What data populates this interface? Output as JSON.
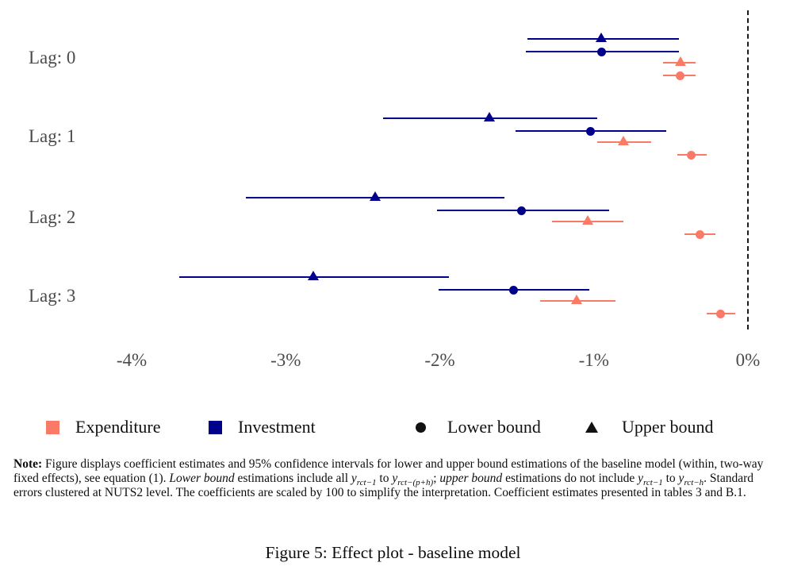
{
  "figure": {
    "caption": "Figure 5: Effect plot - baseline model"
  },
  "legend": {
    "expenditure_label": "Expenditure",
    "investment_label": "Investment",
    "lower_bound_label": "Lower bound",
    "upper_bound_label": "Upper bound"
  },
  "note": {
    "segments": [
      {
        "t": "Note:",
        "b": true
      },
      {
        "t": " Figure displays coefficient estimates and 95% confidence intervals for lower and upper bound estimations of the baseline model (within, two-way fixed effects), see equation (1). "
      },
      {
        "t": "Lower bound",
        "i": true
      },
      {
        "t": " estimations include all "
      },
      {
        "t": "y",
        "i": true
      },
      {
        "t": "rct−1",
        "i": true,
        "sub": true
      },
      {
        "t": " to "
      },
      {
        "t": "y",
        "i": true
      },
      {
        "t": "rct−(p+h)",
        "i": true,
        "sub": true
      },
      {
        "t": "; "
      },
      {
        "t": "upper bound",
        "i": true
      },
      {
        "t": " estimations do not include "
      },
      {
        "t": "y",
        "i": true
      },
      {
        "t": "rct−1",
        "i": true,
        "sub": true
      },
      {
        "t": " to "
      },
      {
        "t": "y",
        "i": true
      },
      {
        "t": "rct−h",
        "i": true,
        "sub": true
      },
      {
        "t": ". Standard errors clustered at NUTS2 level. The coefficients are scaled by 100 to simplify the interpretation. Coefficient estimates presented in tables 3 and B.1."
      }
    ]
  },
  "chart_data": {
    "type": "scatter",
    "subtype": "coefficient-interval-plot",
    "title": "Effect plot - baseline model",
    "xlabel": "",
    "ylabel": "",
    "x_unit": "%",
    "xlim": [
      -4.3,
      0.25
    ],
    "grid": false,
    "zero_line": {
      "value": 0,
      "style": "dashed",
      "color": "#1a1a1a"
    },
    "x_ticks": [
      {
        "label": "-4%",
        "value": -4
      },
      {
        "label": "-3%",
        "value": -3
      },
      {
        "label": "-2%",
        "value": -2
      },
      {
        "label": "-1%",
        "value": -1
      },
      {
        "label": "0%",
        "value": 0
      }
    ],
    "y_categories": [
      "Lag: 0",
      "Lag: 1",
      "Lag: 2",
      "Lag: 3"
    ],
    "colors": {
      "Expenditure": "#fa7a68",
      "Investment": "#00008b",
      "legend_marker": "#111111"
    },
    "marker_legend": {
      "circle": "Lower bound",
      "triangle": "Upper bound"
    },
    "series": [
      {
        "lag": 0,
        "group": "Investment",
        "bound": "upper",
        "marker": "triangle",
        "estimate": -0.95,
        "ci_low": -1.43,
        "ci_high": -0.45
      },
      {
        "lag": 0,
        "group": "Investment",
        "bound": "lower",
        "marker": "circle",
        "estimate": -0.95,
        "ci_low": -1.44,
        "ci_high": -0.45
      },
      {
        "lag": 0,
        "group": "Expenditure",
        "bound": "upper",
        "marker": "triangle",
        "estimate": -0.44,
        "ci_low": -0.55,
        "ci_high": -0.34
      },
      {
        "lag": 0,
        "group": "Expenditure",
        "bound": "lower",
        "marker": "circle",
        "estimate": -0.44,
        "ci_low": -0.55,
        "ci_high": -0.34
      },
      {
        "lag": 1,
        "group": "Investment",
        "bound": "upper",
        "marker": "triangle",
        "estimate": -1.68,
        "ci_low": -2.37,
        "ci_high": -0.98
      },
      {
        "lag": 1,
        "group": "Investment",
        "bound": "lower",
        "marker": "circle",
        "estimate": -1.02,
        "ci_low": -1.51,
        "ci_high": -0.53
      },
      {
        "lag": 1,
        "group": "Expenditure",
        "bound": "upper",
        "marker": "triangle",
        "estimate": -0.81,
        "ci_low": -0.98,
        "ci_high": -0.63
      },
      {
        "lag": 1,
        "group": "Expenditure",
        "bound": "lower",
        "marker": "circle",
        "estimate": -0.37,
        "ci_low": -0.46,
        "ci_high": -0.27
      },
      {
        "lag": 2,
        "group": "Investment",
        "bound": "upper",
        "marker": "triangle",
        "estimate": -2.42,
        "ci_low": -3.26,
        "ci_high": -1.58
      },
      {
        "lag": 2,
        "group": "Investment",
        "bound": "lower",
        "marker": "circle",
        "estimate": -1.47,
        "ci_low": -2.02,
        "ci_high": -0.9
      },
      {
        "lag": 2,
        "group": "Expenditure",
        "bound": "upper",
        "marker": "triangle",
        "estimate": -1.04,
        "ci_low": -1.27,
        "ci_high": -0.81
      },
      {
        "lag": 2,
        "group": "Expenditure",
        "bound": "lower",
        "marker": "circle",
        "estimate": -0.31,
        "ci_low": -0.41,
        "ci_high": -0.21
      },
      {
        "lag": 3,
        "group": "Investment",
        "bound": "upper",
        "marker": "triangle",
        "estimate": -2.82,
        "ci_low": -3.69,
        "ci_high": -1.94
      },
      {
        "lag": 3,
        "group": "Investment",
        "bound": "lower",
        "marker": "circle",
        "estimate": -1.52,
        "ci_low": -2.01,
        "ci_high": -1.03
      },
      {
        "lag": 3,
        "group": "Expenditure",
        "bound": "upper",
        "marker": "triangle",
        "estimate": -1.11,
        "ci_low": -1.35,
        "ci_high": -0.86
      },
      {
        "lag": 3,
        "group": "Expenditure",
        "bound": "lower",
        "marker": "circle",
        "estimate": -0.18,
        "ci_low": -0.27,
        "ci_high": -0.08
      }
    ]
  }
}
